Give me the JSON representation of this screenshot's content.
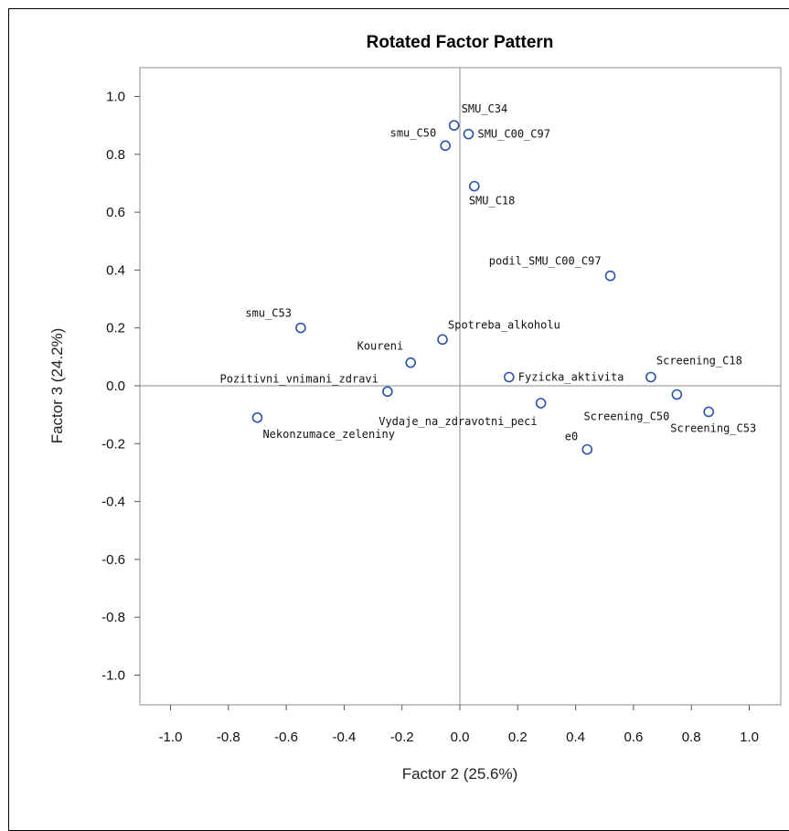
{
  "chart_data": {
    "type": "scatter",
    "title": "Rotated Factor Pattern",
    "xlabel": "Factor 2 (25.6%)",
    "ylabel": "Factor 3 (24.2%)",
    "xlim": [
      -1.1,
      1.1
    ],
    "ylim": [
      -1.1,
      1.1
    ],
    "x_ticks": [
      "-1.0",
      "-0.8",
      "-0.6",
      "-0.4",
      "-0.2",
      "0.0",
      "0.2",
      "0.4",
      "0.6",
      "0.8",
      "1.0"
    ],
    "y_ticks": [
      "1.0",
      "0.8",
      "0.6",
      "0.4",
      "0.2",
      "0.0",
      "-0.2",
      "-0.4",
      "-0.6",
      "-0.8",
      "-1.0"
    ],
    "reference_lines": {
      "x": 0,
      "y": 0
    },
    "marker_color": "#2b53a8",
    "points": [
      {
        "label": "SMU_C34",
        "x": -0.02,
        "y": 0.9
      },
      {
        "label": "smu_C50",
        "x": -0.05,
        "y": 0.83
      },
      {
        "label": "SMU_C00_C97",
        "x": 0.03,
        "y": 0.87
      },
      {
        "label": "SMU_C18",
        "x": 0.05,
        "y": 0.69
      },
      {
        "label": "podil_SMU_C00_C97",
        "x": 0.52,
        "y": 0.38
      },
      {
        "label": "smu_C53",
        "x": -0.55,
        "y": 0.2
      },
      {
        "label": "Spotreba_alkoholu",
        "x": -0.06,
        "y": 0.16
      },
      {
        "label": "Koureni",
        "x": -0.17,
        "y": 0.08
      },
      {
        "label": "Pozitivni_vnimani_zdravi",
        "x": -0.25,
        "y": -0.02
      },
      {
        "label": "Vydaje_na_zdravotni_peci",
        "x": 0.28,
        "y": -0.06
      },
      {
        "label": "Nekonzumace_zeleniny",
        "x": -0.7,
        "y": -0.11
      },
      {
        "label": "Fyzicka_aktivita",
        "x": 0.17,
        "y": 0.03
      },
      {
        "label": "Screening_C18",
        "x": 0.66,
        "y": 0.03
      },
      {
        "label": "Screening_C50",
        "x": 0.75,
        "y": -0.03
      },
      {
        "label": "Screening_C53",
        "x": 0.86,
        "y": -0.09
      },
      {
        "label": "e0",
        "x": 0.44,
        "y": -0.22
      }
    ]
  }
}
